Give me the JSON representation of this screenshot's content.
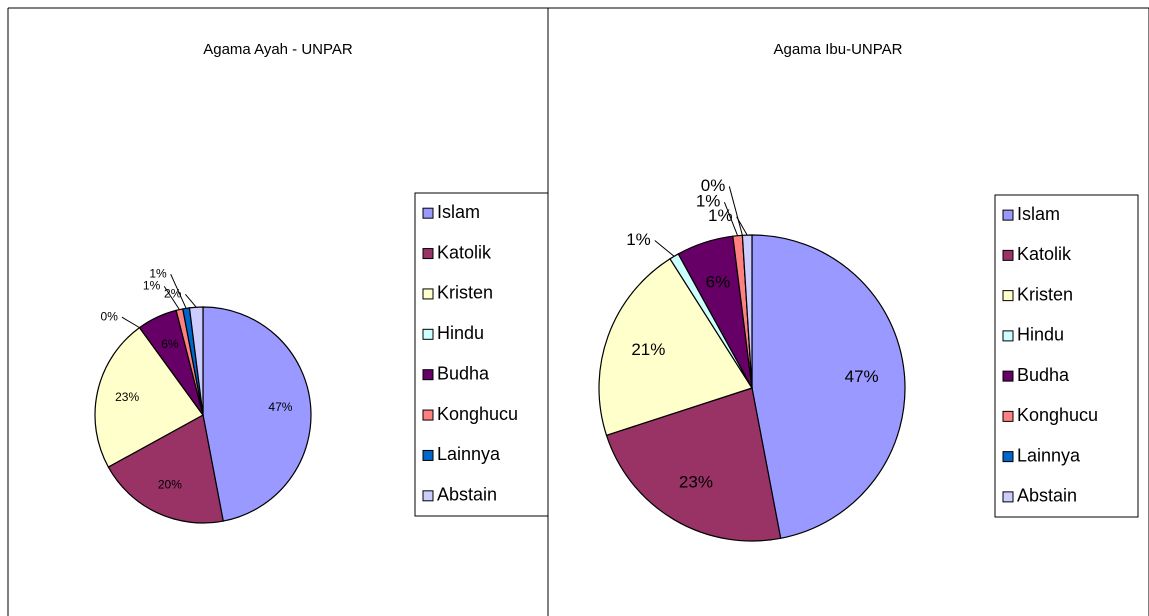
{
  "chart_data": [
    {
      "type": "pie",
      "title": "Agama Ayah - UNPAR",
      "categories": [
        "Islam",
        "Katolik",
        "Kristen",
        "Hindu",
        "Budha",
        "Konghucu",
        "Lainnya",
        "Abstain"
      ],
      "values": [
        47,
        20,
        23,
        0,
        6,
        1,
        1,
        2
      ],
      "value_labels": [
        "47%",
        "20%",
        "23%",
        "0%",
        "6%",
        "1%",
        "1%",
        "2%"
      ],
      "colors": [
        "#9999ff",
        "#993366",
        "#ffffcc",
        "#ccffff",
        "#660066",
        "#ff8080",
        "#0066cc",
        "#ccccff"
      ]
    },
    {
      "type": "pie",
      "title": "Agama Ibu-UNPAR",
      "categories": [
        "Islam",
        "Katolik",
        "Kristen",
        "Hindu",
        "Budha",
        "Konghucu",
        "Lainnya",
        "Abstain"
      ],
      "values": [
        47,
        23,
        21,
        1,
        6,
        1,
        0,
        1
      ],
      "value_labels": [
        "47%",
        "23%",
        "21%",
        "1%",
        "6%",
        "1%",
        "0%",
        "1%"
      ],
      "colors": [
        "#9999ff",
        "#993366",
        "#ffffcc",
        "#ccffff",
        "#660066",
        "#ff8080",
        "#0066cc",
        "#ccccff"
      ]
    }
  ]
}
